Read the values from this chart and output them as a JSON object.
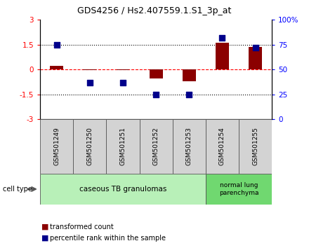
{
  "title": "GDS4256 / Hs2.407559.1.S1_3p_at",
  "samples": [
    "GSM501249",
    "GSM501250",
    "GSM501251",
    "GSM501252",
    "GSM501253",
    "GSM501254",
    "GSM501255"
  ],
  "transformed_count": [
    0.2,
    -0.05,
    -0.05,
    -0.55,
    -0.7,
    1.6,
    1.35
  ],
  "percentile_rank_pct": [
    75,
    37,
    37,
    25,
    25,
    82,
    72
  ],
  "ylim_left": [
    -3,
    3
  ],
  "ylim_right": [
    0,
    100
  ],
  "yticks_left": [
    -3,
    -1.5,
    0,
    1.5,
    3
  ],
  "yticks_right": [
    0,
    25,
    50,
    75,
    100
  ],
  "ytick_labels_left": [
    "-3",
    "-1.5",
    "0",
    "1.5",
    "3"
  ],
  "ytick_labels_right": [
    "0",
    "25",
    "50",
    "75",
    "100%"
  ],
  "hline_vals": [
    1.5,
    0.0,
    -1.5
  ],
  "hline_styles": [
    "dotted",
    "dashed",
    "dotted"
  ],
  "hline_colors": [
    "black",
    "red",
    "black"
  ],
  "bar_color": "#8B0000",
  "dot_color": "#00008B",
  "group1_indices": [
    0,
    1,
    2,
    3,
    4
  ],
  "group2_indices": [
    5,
    6
  ],
  "group1_label": "caseous TB granulomas",
  "group2_label": "normal lung\nparenchyma",
  "group1_bg": "#b8f0b8",
  "group2_bg": "#70d870",
  "cell_type_label": "cell type",
  "legend_bar_label": "transformed count",
  "legend_dot_label": "percentile rank within the sample",
  "bar_width": 0.4,
  "dot_size": 40,
  "background_color": "#ffffff"
}
